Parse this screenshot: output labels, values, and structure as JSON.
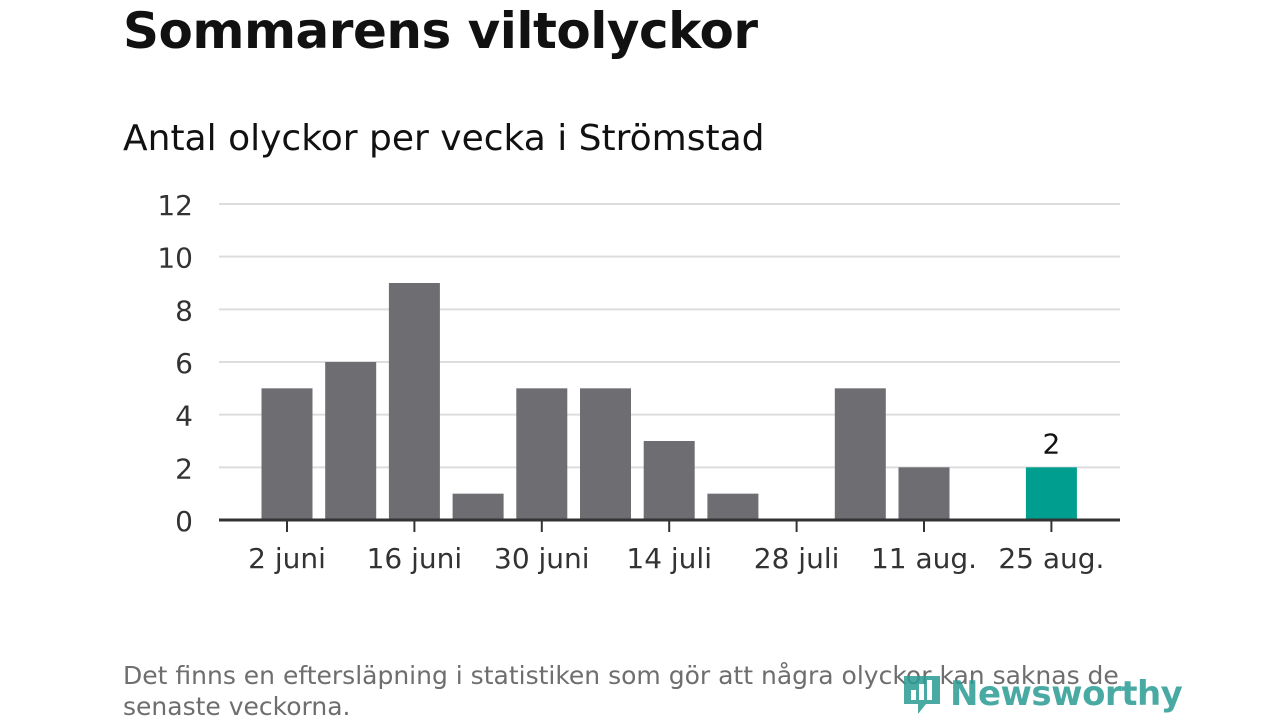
{
  "title": "Sommarens viltolyckor",
  "subtitle": "Antal olyckor per vecka i Strömstad",
  "footnote": "Det finns en eftersläpning i statistiken som gör att några olyckor kan saknas de senaste veckorna.",
  "brand": {
    "name": "Newsworthy",
    "icon": "newsworthy-logo-icon"
  },
  "colors": {
    "bar": "#6e6d72",
    "highlight": "#009e8e",
    "grid": "#dddddd",
    "axis": "#333333",
    "text": "#333333"
  },
  "chart_data": {
    "type": "bar",
    "title": "Antal olyckor per vecka i Strömstad",
    "xlabel": "",
    "ylabel": "",
    "ylim": [
      0,
      12
    ],
    "yticks": [
      "0",
      "2",
      "4",
      "6",
      "8",
      "10",
      "12"
    ],
    "categories": [
      "2 juni",
      "9 juni",
      "16 juni",
      "23 juni",
      "30 juni",
      "7 juli",
      "14 juli",
      "21 juli",
      "28 juli",
      "4 aug.",
      "11 aug.",
      "18 aug.",
      "25 aug."
    ],
    "values": [
      5,
      6,
      9,
      1,
      5,
      5,
      3,
      1,
      0,
      5,
      2,
      0,
      2
    ],
    "xtick_labels": [
      "2 juni",
      "16 juni",
      "30 juni",
      "14 juli",
      "28 juli",
      "11 aug.",
      "25 aug."
    ],
    "highlight_index": 12,
    "highlight_label": "2",
    "grid": true,
    "legend": "none"
  }
}
